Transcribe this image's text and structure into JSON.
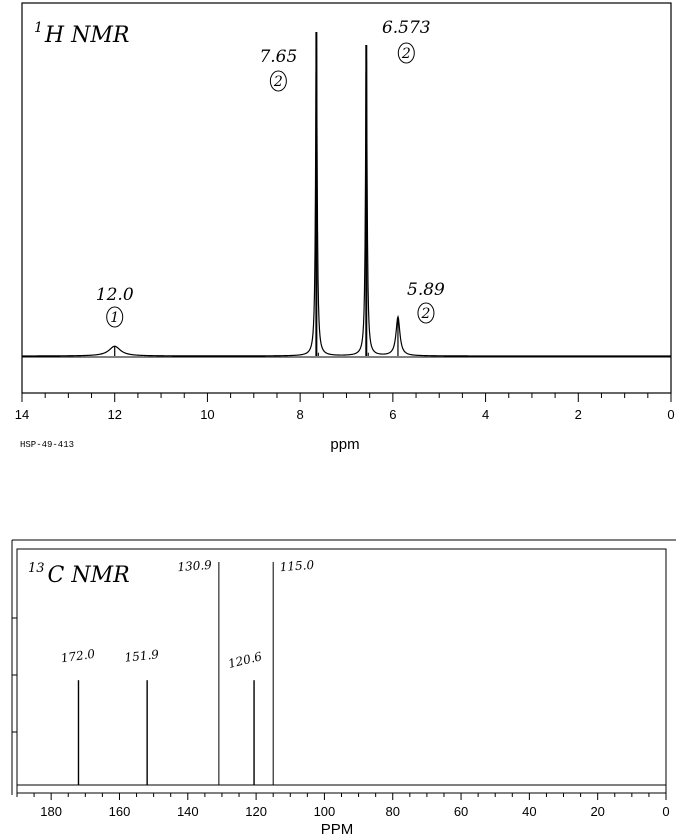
{
  "chart_data": [
    {
      "type": "line",
      "title": "1H NMR",
      "title_superscript": "1",
      "title_main": "H NMR",
      "xlabel": "ppm",
      "xlim": [
        14,
        0
      ],
      "x_reversed": true,
      "x_ticks": [
        14,
        12,
        10,
        8,
        6,
        4,
        2,
        0
      ],
      "code_label": "HSP-49-413",
      "baseline_break_height": 0.17,
      "peaks": [
        {
          "shift": 12.0,
          "height": 0.03,
          "width": 0.15,
          "label": "12.0",
          "integration": "1"
        },
        {
          "shift": 7.65,
          "height": 1.0,
          "width": 0.02,
          "label": "7.65",
          "integration": "2"
        },
        {
          "shift": 6.573,
          "height": 0.96,
          "width": 0.02,
          "label": "6.573",
          "integration": "2"
        },
        {
          "shift": 5.89,
          "height": 0.12,
          "width": 0.05,
          "label": "5.89",
          "integration": "2"
        }
      ]
    },
    {
      "type": "bar",
      "title": "13C NMR",
      "title_superscript": "13",
      "title_main": "C NMR",
      "xlabel": "PPM",
      "xlim": [
        190,
        0
      ],
      "x_reversed": true,
      "x_ticks": [
        180,
        160,
        140,
        120,
        100,
        80,
        60,
        40,
        20,
        0
      ],
      "peaks": [
        {
          "shift": 172.0,
          "height": 0.47,
          "label": "172.0"
        },
        {
          "shift": 151.9,
          "height": 0.47,
          "label": "151.9"
        },
        {
          "shift": 130.9,
          "height": 1.0,
          "label": "130.9"
        },
        {
          "shift": 120.6,
          "height": 0.47,
          "label": "120.6"
        },
        {
          "shift": 115.0,
          "height": 1.0,
          "label": "115.0"
        }
      ]
    }
  ]
}
